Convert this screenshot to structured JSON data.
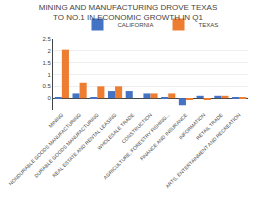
{
  "chart_data": {
    "type": "bar",
    "title": "MINING AND MANUFACTURING DROVE TEXAS\nTO NO.1 IN ECONOMIC GROWTH IN Q1",
    "categories": [
      "MINING",
      "NONDURABLE GOODS MANUFACTURING",
      "DURABLE GOODS MANUFACTURING",
      "REAL ESTATE AND RENTAL LEASING",
      "WHOLESALE TRADE",
      "CONSTRUCTION",
      "AGRICULTURE, FORESTRY FISHING...",
      "FINANCE AND INSURANCE",
      "INFORMATION",
      "RETAIL TRADE",
      "ARTS, ENTERTAINMENT AND RECREATION"
    ],
    "series": [
      {
        "name": "CALIFORNIA",
        "color": "#4472c4",
        "values": [
          0.05,
          0.2,
          0.05,
          0.3,
          0.3,
          0.2,
          0.05,
          -0.3,
          0.1,
          0.1,
          0.05
        ]
      },
      {
        "name": "TEXAS",
        "color": "#ed7d31",
        "values": [
          2.05,
          0.65,
          0.5,
          0.5,
          0.0,
          0.2,
          0.2,
          -0.05,
          -0.05,
          0.1,
          0.05
        ]
      }
    ],
    "ylim": [
      -0.5,
      2.5
    ],
    "yticks": [
      0,
      0.5,
      1,
      1.5,
      2,
      2.5
    ],
    "grid": true,
    "legend": "top"
  }
}
